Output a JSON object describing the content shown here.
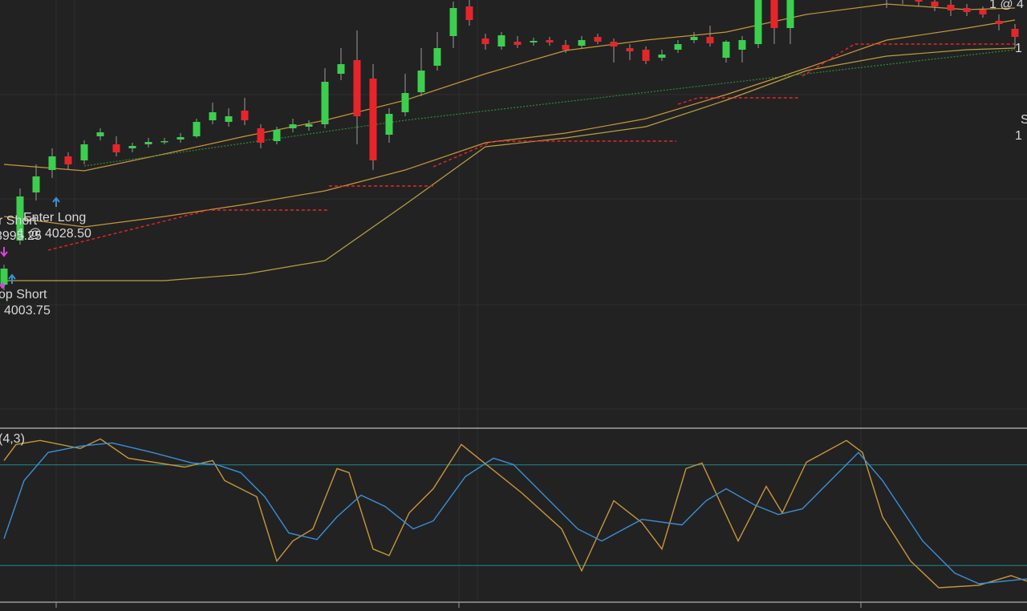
{
  "chart_data": [
    {
      "type": "candlestick",
      "up_color": "#3ccf4e",
      "down_color": "#e8242b",
      "wick_color": "#9a9a9a",
      "ylim": [
        3958,
        4091
      ],
      "open": [
        4002.25,
        4016,
        4031,
        4038,
        4042.25,
        4041,
        4048.5,
        4046,
        4044.75,
        4046,
        4046.75,
        4047.5,
        4048.5,
        4053.5,
        4053,
        4056.5,
        4051,
        4047,
        4051,
        4051.5,
        4052.25,
        4068,
        4072.25,
        4066.5,
        4049,
        4056,
        4062.25,
        4070.5,
        4079.75,
        4089,
        4079,
        4076.5,
        4078,
        4077.75,
        4078.5,
        4077,
        4076.75,
        4079.5,
        4078,
        4076,
        4075.5,
        4073,
        4075.5,
        4078.5,
        4079.5,
        4073,
        4075.5,
        4077.25,
        4091,
        4082.25,
        4093.5,
        4094.75,
        4096,
        4096.5,
        4094.75,
        4092.25,
        4091.5,
        4091.75,
        4090.5,
        4089.5,
        4088.5,
        4088,
        4084.5,
        4082
      ],
      "high": [
        4008.5,
        4032.25,
        4039.75,
        4044.75,
        4043.5,
        4047.25,
        4051,
        4048.5,
        4046.5,
        4048,
        4048,
        4049.5,
        4054,
        4059,
        4057.25,
        4060.5,
        4052.25,
        4051.5,
        4054,
        4053.5,
        4069.75,
        4076,
        4081.5,
        4071,
        4057.25,
        4068,
        4076,
        4081,
        4090.5,
        4091,
        4080.5,
        4081,
        4079.75,
        4079.25,
        4079.5,
        4078.5,
        4079.75,
        4080.5,
        4079,
        4077.25,
        4076.5,
        4075.5,
        4078.5,
        4081,
        4083,
        4078.5,
        4079.75,
        4093.5,
        4093.5,
        4094.75,
        4098.5,
        4099.75,
        4099.75,
        4098.5,
        4097.25,
        4093.5,
        4093.5,
        4093.5,
        4092.25,
        4091,
        4089.75,
        4089,
        4086.5,
        4083.5
      ],
      "low": [
        4000.5,
        4014.75,
        4028.5,
        4035.5,
        4038,
        4039.75,
        4047.25,
        4042.25,
        4043.5,
        4045,
        4046,
        4046.5,
        4048,
        4052.25,
        4051.5,
        4052,
        4044.75,
        4046,
        4049.75,
        4050.25,
        4051,
        4066,
        4046,
        4038,
        4046.5,
        4054.75,
        4061,
        4069,
        4076,
        4083,
        4075.5,
        4075.5,
        4076,
        4076.75,
        4076.75,
        4074.5,
        4076,
        4077.25,
        4071.5,
        4072.25,
        4071,
        4072,
        4074.5,
        4077.5,
        4076.5,
        4071.5,
        4071.5,
        4076,
        4077.25,
        4077.25,
        4092.25,
        4093.5,
        4094,
        4093.5,
        4092.25,
        4088.5,
        4089.75,
        4089,
        4087.5,
        4086,
        4086,
        4085.5,
        4081.5,
        4076
      ],
      "close": [
        4007.25,
        4029.75,
        4036,
        4042.25,
        4039.75,
        4046,
        4049.75,
        4043.5,
        4045.5,
        4046.75,
        4047,
        4048.25,
        4053,
        4056,
        4054.75,
        4053.5,
        4046.5,
        4050.5,
        4052.25,
        4052.25,
        4065.5,
        4071,
        4054.75,
        4041,
        4055.5,
        4062,
        4069,
        4076,
        4088.5,
        4084.75,
        4077.25,
        4080,
        4077,
        4078.25,
        4077.75,
        4075.5,
        4078.5,
        4078,
        4076.5,
        4075,
        4072,
        4074,
        4077.25,
        4079.5,
        4077.5,
        4078,
        4078.5,
        4091,
        4082.25,
        4092.25,
        4096,
        4097.25,
        4097.25,
        4095.5,
        4093.5,
        4091.5,
        4092.25,
        4090.5,
        4089,
        4087.75,
        4087.25,
        4086.5,
        4083.5,
        4079.5
      ],
      "overlays": [
        {
          "color": "#c8963a",
          "x": [
            0,
            5,
            10,
            15,
            20,
            25,
            30,
            35,
            40,
            45,
            50,
            55,
            60,
            63
          ],
          "values": [
            4039.75,
            4037.75,
            4043,
            4048.5,
            4053.5,
            4059.75,
            4068,
            4075.25,
            4078.5,
            4081,
            4086.5,
            4089.75,
            4088,
            4088.5
          ]
        },
        {
          "color": "#c8963a",
          "x": [
            0,
            5,
            10,
            15,
            20,
            25,
            30,
            35,
            40,
            45,
            50,
            55,
            60,
            63
          ],
          "values": [
            4023.5,
            4020.25,
            4023.5,
            4027.25,
            4031.5,
            4038,
            4046.5,
            4049.5,
            4054,
            4061.5,
            4069.75,
            4078.5,
            4082.25,
            4084.75
          ]
        },
        {
          "color": "#b8a040",
          "x": [
            0,
            5,
            10,
            15,
            20,
            25,
            30,
            35,
            40,
            45,
            50,
            55,
            60,
            63
          ],
          "values": [
            4003.5,
            4003.5,
            4003.5,
            4005.5,
            4009.75,
            4027.25,
            4045.25,
            4048,
            4051.5,
            4059.75,
            4069,
            4073.5,
            4075.5,
            4076
          ]
        },
        {
          "color": "#2f8a3a",
          "dotted": true,
          "x": [
            5,
            25,
            50,
            63
          ],
          "values": [
            4039.25,
            4053.5,
            4068,
            4075.5
          ]
        }
      ],
      "stops": {
        "color": "#e8242b",
        "x": [
          2.75,
          12.75,
          20.15,
          null,
          20.25,
          26.75,
          null,
          26.75,
          30.5,
          41.9,
          null,
          42,
          43.25,
          49.6,
          null,
          49.75,
          53,
          63.25
        ],
        "values": [
          4013,
          4025.5,
          4025.5,
          null,
          4033,
          4033,
          null,
          4039,
          4047,
          4047,
          null,
          4058.5,
          4060.5,
          4060.5,
          null,
          4067.25,
          4077.25,
          4077.25
        ]
      },
      "annotations": [
        "Enter Long",
        "1 @ 4028.50",
        "r Short",
        "3995.25",
        "op Short",
        "4003.75",
        "1 @ 4",
        "S",
        "1",
        "1"
      ]
    },
    {
      "type": "line",
      "title": "(4,3)",
      "ylim": [
        0,
        100
      ],
      "levels": [
        20,
        80
      ],
      "level_color": "#1e8a8a",
      "series": [
        {
          "color": "#c8963a",
          "x": [
            0,
            0.75,
            2.25,
            4.75,
            6,
            7.75,
            11.25,
            13,
            13.75,
            15.75,
            17,
            18,
            19.25,
            20.75,
            21.5,
            23,
            24,
            25.25,
            26.75,
            28.5,
            29.75,
            32.25,
            34.75,
            36,
            38,
            39.75,
            41,
            42.5,
            43.5,
            45.75,
            47.5,
            48.5,
            50,
            52.5,
            53.5,
            54.75,
            56.5,
            58.25,
            60.75,
            62.75,
            63.75
          ],
          "values": [
            82.6,
            92.2,
            94.6,
            89.8,
            95.5,
            84,
            78.7,
            82.6,
            70.6,
            61,
            22.6,
            34.6,
            41.8,
            77.8,
            75.4,
            29.8,
            25.9,
            51.4,
            65.8,
            92.2,
            82.6,
            63.4,
            41.8,
            16.8,
            58.6,
            45.6,
            29.8,
            77.8,
            81.1,
            34.6,
            67.2,
            51.4,
            81.6,
            94.6,
            87.4,
            49,
            22.6,
            6.7,
            8.2,
            13.9,
            10.6
          ]
        },
        {
          "color": "#3a8fd8",
          "x": [
            0,
            1.25,
            2.75,
            4.75,
            6.75,
            9.25,
            11.75,
            13.25,
            14.75,
            16.25,
            17.75,
            19.5,
            20.75,
            22.25,
            23.75,
            25.5,
            26.75,
            28.75,
            30.5,
            31.75,
            34.25,
            35.75,
            37.25,
            39.75,
            42.25,
            43.75,
            45,
            46.75,
            48.25,
            49.75,
            51.75,
            53.25,
            54.75,
            57.25,
            59.25,
            60.75,
            63.75
          ],
          "values": [
            36,
            70.6,
            87.4,
            91.2,
            93.1,
            87.4,
            81.1,
            80.2,
            75.4,
            61,
            39.4,
            35.5,
            49,
            61.9,
            55.2,
            41.8,
            46.6,
            73,
            84,
            80.2,
            56.2,
            41.8,
            34.6,
            47.5,
            44.2,
            58.6,
            65.8,
            56.2,
            50.4,
            53.8,
            73,
            87.4,
            70.6,
            34.6,
            15.4,
            9.1,
            12
          ]
        }
      ]
    }
  ]
}
